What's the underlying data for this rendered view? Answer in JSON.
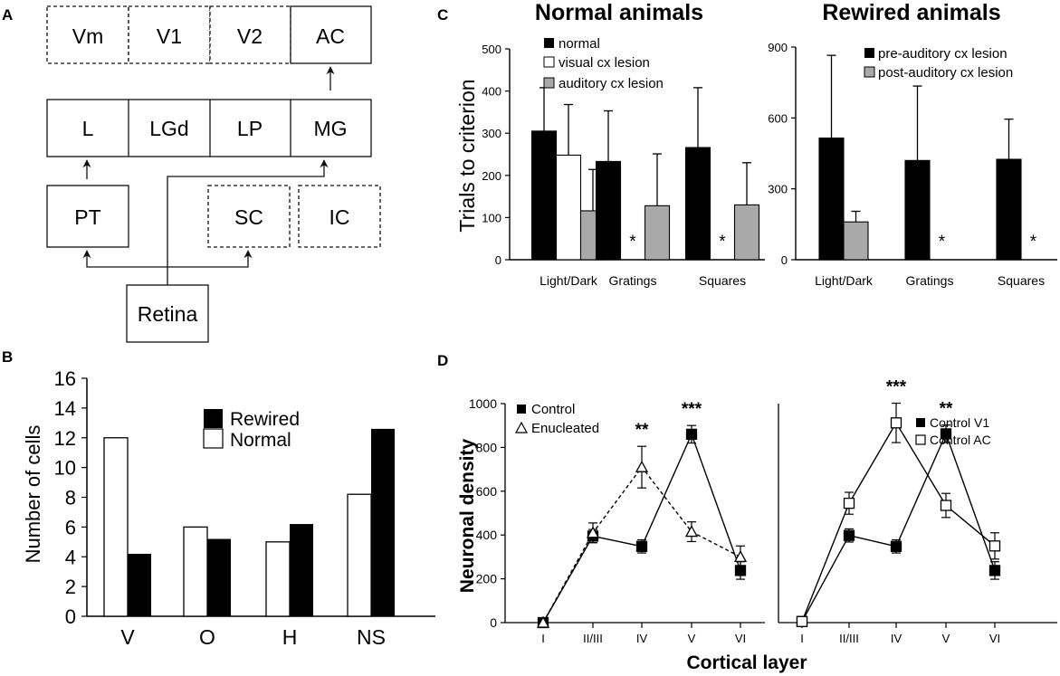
{
  "panels": {
    "a": "A",
    "b": "B",
    "c": "C",
    "d": "D"
  },
  "diagram": {
    "cortex": [
      "Vm",
      "V1",
      "V2",
      "AC"
    ],
    "thalamus": [
      "L",
      "LGd",
      "LP",
      "MG"
    ],
    "midbrain": [
      "PT",
      "SC",
      "IC"
    ],
    "source": "Retina"
  },
  "chart_data": [
    {
      "id": "B",
      "type": "bar",
      "categories": [
        "V",
        "O",
        "H",
        "NS"
      ],
      "series": [
        {
          "name": "Normal",
          "values": [
            12,
            6,
            5,
            8.2
          ]
        },
        {
          "name": "Rewired",
          "values": [
            4.2,
            5.2,
            6.2,
            12.6
          ]
        }
      ],
      "legend": [
        "Rewired",
        "Normal"
      ],
      "ylabel": "Number of cells",
      "xlabel": "",
      "ylim": [
        0,
        16
      ],
      "yticks": [
        "0",
        "2",
        "4",
        "6",
        "8",
        "10",
        "12",
        "14",
        "16"
      ]
    },
    {
      "id": "C1",
      "type": "bar",
      "title": "Normal animals",
      "ylabel": "Trials to criterion",
      "categories": [
        "Light/Dark",
        "Gratings",
        "Squares"
      ],
      "series": [
        {
          "name": "normal",
          "values": [
            305,
            233,
            266
          ],
          "errors": [
            103,
            120,
            142
          ]
        },
        {
          "name": "visual cx lesion",
          "values": [
            248,
            0,
            0
          ],
          "errors": [
            120,
            0,
            0
          ],
          "missing": [
            false,
            true,
            true
          ]
        },
        {
          "name": "auditory cx lesion",
          "values": [
            116,
            128,
            130
          ],
          "errors": [
            98,
            123,
            100
          ]
        }
      ],
      "missing_marker": "*",
      "ylim": [
        0,
        500
      ],
      "yticks": [
        "0",
        "100",
        "200",
        "300",
        "400",
        "500"
      ]
    },
    {
      "id": "C2",
      "type": "bar",
      "title": "Rewired animals",
      "categories": [
        "Light/Dark",
        "Gratings",
        "Squares"
      ],
      "series": [
        {
          "name": "pre-auditory cx lesion",
          "values": [
            515,
            420,
            425
          ],
          "errors": [
            350,
            315,
            170
          ]
        },
        {
          "name": "post-auditory cx lesion",
          "values": [
            160,
            0,
            0
          ],
          "errors": [
            45,
            0,
            0
          ],
          "missing": [
            false,
            true,
            true
          ]
        }
      ],
      "missing_marker": "*",
      "ylim": [
        0,
        900
      ],
      "yticks": [
        "0",
        "300",
        "600",
        "900"
      ]
    },
    {
      "id": "D1",
      "type": "line",
      "ylabel": "Neuronal density",
      "categories": [
        "I",
        "II/III",
        "IV",
        "V",
        "VI"
      ],
      "series": [
        {
          "name": "Control",
          "marker": "filled-square",
          "values": [
            0,
            395,
            348,
            860,
            238
          ],
          "errors": [
            0,
            30,
            30,
            40,
            40
          ]
        },
        {
          "name": "Enucleated",
          "marker": "open-triangle",
          "values": [
            0,
            410,
            710,
            415,
            300
          ],
          "errors": [
            0,
            45,
            95,
            45,
            50
          ]
        }
      ],
      "significance": [
        {
          "at": "IV",
          "label": "**"
        },
        {
          "at": "V",
          "label": "***"
        }
      ],
      "ylim": [
        0,
        1000
      ],
      "yticks": [
        "0",
        "200",
        "400",
        "600",
        "800",
        "1000"
      ]
    },
    {
      "id": "D2",
      "type": "line",
      "categories": [
        "I",
        "II/III",
        "IV",
        "V",
        "VI"
      ],
      "series": [
        {
          "name": "Control V1",
          "marker": "filled-square",
          "values": [
            5,
            398,
            348,
            862,
            238
          ],
          "errors": [
            0,
            30,
            30,
            40,
            40
          ]
        },
        {
          "name": "Control AC",
          "marker": "open-square",
          "values": [
            5,
            545,
            912,
            535,
            350
          ],
          "errors": [
            0,
            50,
            90,
            55,
            60
          ]
        }
      ],
      "significance": [
        {
          "at": "IV",
          "label": "***"
        },
        {
          "at": "V",
          "label": "**"
        }
      ],
      "ylim": [
        0,
        1000
      ]
    }
  ],
  "shared_xlabel_d": "Cortical layer"
}
